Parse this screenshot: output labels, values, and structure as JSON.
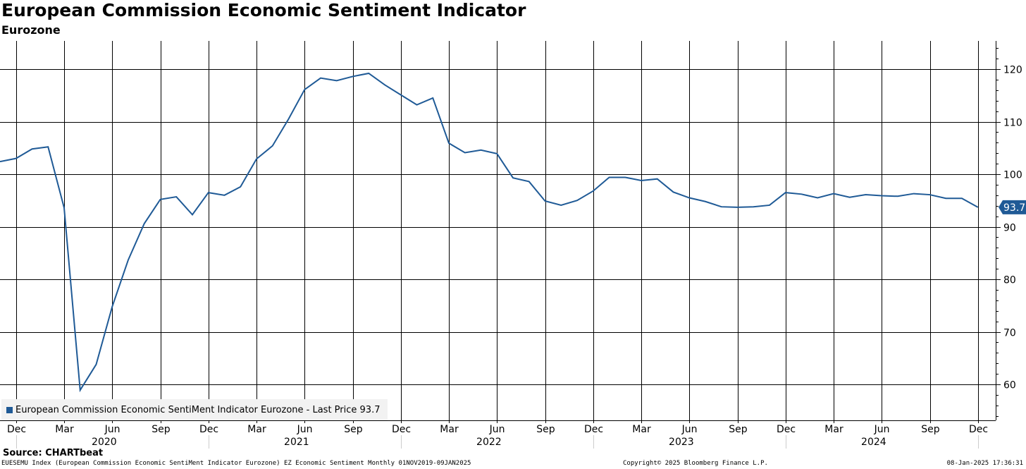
{
  "header": {
    "title": "European Commission Economic Sentiment Indicator",
    "subtitle": "Eurozone"
  },
  "legend": {
    "label": "European Commission Economic SentiMent Indicator Eurozone - Last Price 93.7"
  },
  "colors": {
    "line": "#1f5a96",
    "grid": "#000000",
    "last_price_tag": "#1f5a96"
  },
  "footer": {
    "source": "Source: CHARTbeat",
    "ticker_line": "EUESEMU Index (European Commission Economic SentiMent Indicator Eurozone) EZ Economic Sentiment  Monthly 01NOV2019-09JAN2025",
    "copyright": "Copyright© 2025 Bloomberg Finance L.P.",
    "timestamp": "08-Jan-2025 17:36:31"
  },
  "chart_data": {
    "type": "line",
    "title": "European Commission Economic Sentiment Indicator",
    "subtitle": "Eurozone",
    "xlabel": "",
    "ylabel": "",
    "ylim": [
      53,
      125
    ],
    "yticks": [
      60,
      70,
      80,
      90,
      100,
      110,
      120
    ],
    "grid": true,
    "legend_position": "bottom-left",
    "x_start": "2019-11",
    "x_end": "2024-12",
    "x_tick_labels": [
      "Dec",
      "Mar",
      "Jun",
      "Sep",
      "Dec",
      "Mar",
      "Jun",
      "Sep",
      "Dec",
      "Mar",
      "Jun",
      "Sep",
      "Dec",
      "Mar",
      "Jun",
      "Sep",
      "Dec",
      "Mar",
      "Jun",
      "Sep",
      "Dec"
    ],
    "x_tick_month_index": [
      1,
      4,
      7,
      10,
      13,
      16,
      19,
      22,
      25,
      28,
      31,
      34,
      37,
      40,
      43,
      46,
      49,
      52,
      55,
      58,
      61
    ],
    "year_labels": [
      "2020",
      "2021",
      "2022",
      "2023",
      "2024"
    ],
    "year_label_month_index": [
      6.5,
      18.5,
      30.5,
      42.5,
      54.5
    ],
    "last_price": 93.7,
    "last_price_label": "93.7",
    "series": [
      {
        "name": "European Commission Economic SentiMent Indicator Eurozone",
        "months": [
          "2019-11",
          "2019-12",
          "2020-01",
          "2020-02",
          "2020-03",
          "2020-04",
          "2020-05",
          "2020-06",
          "2020-07",
          "2020-08",
          "2020-09",
          "2020-10",
          "2020-11",
          "2020-12",
          "2021-01",
          "2021-02",
          "2021-03",
          "2021-04",
          "2021-05",
          "2021-06",
          "2021-07",
          "2021-08",
          "2021-09",
          "2021-10",
          "2021-11",
          "2021-12",
          "2022-01",
          "2022-02",
          "2022-03",
          "2022-04",
          "2022-05",
          "2022-06",
          "2022-07",
          "2022-08",
          "2022-09",
          "2022-10",
          "2022-11",
          "2022-12",
          "2023-01",
          "2023-02",
          "2023-03",
          "2023-04",
          "2023-05",
          "2023-06",
          "2023-07",
          "2023-08",
          "2023-09",
          "2023-10",
          "2023-11",
          "2023-12",
          "2024-01",
          "2024-02",
          "2024-03",
          "2024-04",
          "2024-05",
          "2024-06",
          "2024-07",
          "2024-08",
          "2024-09",
          "2024-10",
          "2024-11",
          "2024-12"
        ],
        "values": [
          102.4,
          103.0,
          104.8,
          105.2,
          93.6,
          58.9,
          63.8,
          74.8,
          83.7,
          90.6,
          95.2,
          95.7,
          92.3,
          96.5,
          96.0,
          97.6,
          102.9,
          105.4,
          110.5,
          116.1,
          118.3,
          117.8,
          118.6,
          119.2,
          117.0,
          115.1,
          113.2,
          114.5,
          105.9,
          104.1,
          104.6,
          103.9,
          99.3,
          98.6,
          94.9,
          94.1,
          95.0,
          96.8,
          99.4,
          99.4,
          98.8,
          99.1,
          96.6,
          95.5,
          94.8,
          93.8,
          93.7,
          93.8,
          94.1,
          96.5,
          96.2,
          95.5,
          96.3,
          95.6,
          96.1,
          95.9,
          95.8,
          96.3,
          96.1,
          95.4,
          95.4,
          93.7
        ]
      }
    ]
  }
}
